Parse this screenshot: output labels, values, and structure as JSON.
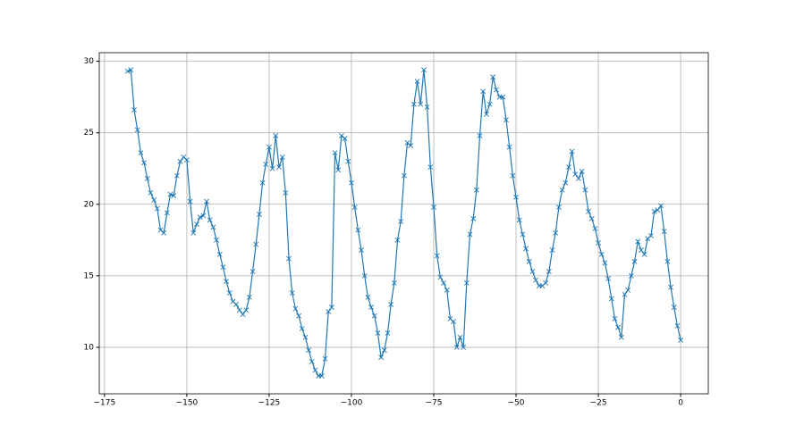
{
  "chart_data": {
    "type": "line",
    "color": "#1f77b4",
    "marker": "x",
    "grid": true,
    "x": [
      -168,
      -167,
      -166,
      -165,
      -164,
      -163,
      -162,
      -161,
      -160,
      -159,
      -158,
      -157,
      -156,
      -155,
      -154,
      -153,
      -152,
      -151,
      -150,
      -149,
      -148,
      -147,
      -146,
      -145,
      -144,
      -143,
      -142,
      -141,
      -140,
      -139,
      -138,
      -137,
      -136,
      -135,
      -134,
      -133,
      -132,
      -131,
      -130,
      -129,
      -128,
      -127,
      -126,
      -125,
      -124,
      -123,
      -122,
      -121,
      -120,
      -119,
      -118,
      -117,
      -116,
      -115,
      -114,
      -113,
      -112,
      -111,
      -110,
      -109,
      -108,
      -107,
      -106,
      -105,
      -104,
      -103,
      -102,
      -101,
      -100,
      -99,
      -98,
      -97,
      -96,
      -95,
      -94,
      -93,
      -92,
      -91,
      -90,
      -89,
      -88,
      -87,
      -86,
      -85,
      -84,
      -83,
      -82,
      -81,
      -80,
      -79,
      -78,
      -77,
      -76,
      -75,
      -74,
      -73,
      -72,
      -71,
      -70,
      -69,
      -68,
      -67,
      -66,
      -65,
      -64,
      -63,
      -62,
      -61,
      -60,
      -59,
      -58,
      -57,
      -56,
      -55,
      -54,
      -53,
      -52,
      -51,
      -50,
      -49,
      -48,
      -47,
      -46,
      -45,
      -44,
      -43,
      -42,
      -41,
      -40,
      -39,
      -38,
      -37,
      -36,
      -35,
      -34,
      -33,
      -32,
      -31,
      -30,
      -29,
      -28,
      -27,
      -26,
      -25,
      -24,
      -23,
      -22,
      -21,
      -20,
      -19,
      -18,
      -17,
      -16,
      -15,
      -14,
      -13,
      -12,
      -11,
      -10,
      -9,
      -8,
      -7,
      -6,
      -5,
      -4,
      -3,
      -2,
      -1,
      0
    ],
    "values": [
      29.3,
      29.4,
      26.6,
      25.2,
      23.6,
      22.9,
      21.8,
      20.8,
      20.3,
      19.7,
      18.2,
      18.0,
      19.4,
      20.7,
      20.6,
      22.0,
      23.0,
      23.3,
      23.1,
      20.2,
      18.0,
      18.6,
      19.1,
      19.2,
      20.2,
      18.9,
      18.4,
      17.5,
      16.5,
      15.6,
      14.6,
      13.8,
      13.2,
      13.0,
      12.6,
      12.3,
      12.6,
      13.5,
      15.3,
      17.2,
      19.3,
      21.5,
      22.8,
      24.0,
      22.5,
      24.8,
      22.6,
      23.3,
      20.8,
      16.2,
      13.8,
      12.7,
      12.2,
      11.3,
      10.7,
      9.8,
      9.0,
      8.4,
      8.0,
      8.0,
      9.2,
      12.5,
      12.8,
      23.6,
      22.4,
      24.8,
      24.6,
      23.0,
      21.5,
      19.8,
      18.2,
      16.8,
      15.0,
      13.5,
      12.8,
      12.2,
      11.0,
      9.3,
      9.8,
      11.0,
      13.0,
      14.5,
      17.5,
      18.8,
      22.0,
      24.3,
      24.1,
      27.0,
      28.6,
      27.0,
      29.4,
      26.8,
      22.6,
      19.8,
      16.4,
      14.9,
      14.5,
      14.0,
      12.0,
      11.8,
      10.0,
      10.7,
      10.0,
      14.5,
      17.9,
      19.0,
      21.0,
      24.8,
      27.9,
      26.3,
      27.0,
      28.9,
      28.0,
      27.5,
      27.5,
      25.9,
      24.0,
      22.0,
      20.5,
      18.9,
      17.9,
      16.9,
      16.0,
      15.3,
      14.7,
      14.3,
      14.3,
      14.5,
      15.3,
      16.8,
      18.0,
      19.8,
      21.0,
      21.5,
      22.6,
      23.7,
      22.1,
      21.8,
      22.3,
      21.0,
      19.5,
      19.0,
      18.3,
      17.3,
      16.5,
      15.9,
      14.8,
      13.4,
      12.0,
      11.4,
      10.7,
      13.7,
      14.0,
      15.0,
      16.0,
      17.4,
      16.8,
      16.5,
      17.6,
      17.8,
      19.5,
      19.6,
      19.9,
      18.1,
      16.0,
      14.2,
      12.8,
      11.5,
      10.5
    ],
    "xlim": [
      -176.6,
      8.4
    ],
    "ylim": [
      6.75,
      30.6
    ],
    "xticks": [
      {
        "value": -175,
        "label": "−175"
      },
      {
        "value": -150,
        "label": "−150"
      },
      {
        "value": -125,
        "label": "−125"
      },
      {
        "value": -100,
        "label": "−100"
      },
      {
        "value": -75,
        "label": "−75"
      },
      {
        "value": -50,
        "label": "−50"
      },
      {
        "value": -25,
        "label": "−25"
      },
      0
    ],
    "yticks": [
      10,
      15,
      20,
      25,
      30
    ]
  }
}
